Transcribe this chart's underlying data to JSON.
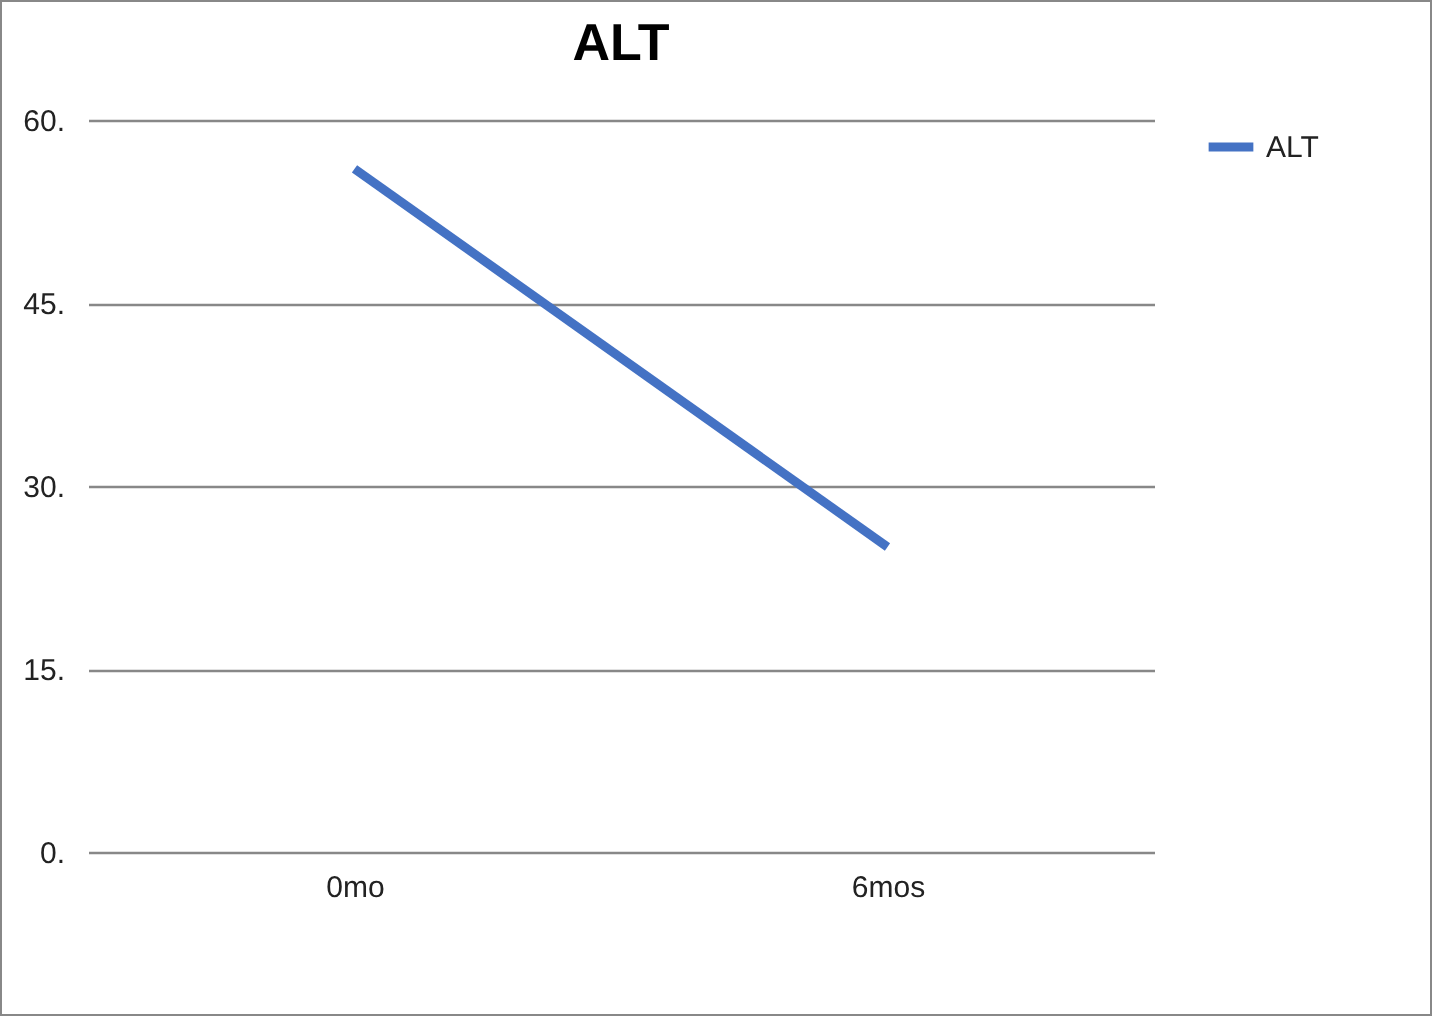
{
  "chart_data": {
    "type": "line",
    "title": "ALT",
    "categories": [
      "0mo",
      "6mos"
    ],
    "series": [
      {
        "name": "ALT",
        "color": "#4472c4",
        "values": [
          56,
          25
        ]
      }
    ],
    "ylim": [
      0,
      60
    ],
    "yticks": [
      {
        "value": 0,
        "label": "0."
      },
      {
        "value": 15,
        "label": "15."
      },
      {
        "value": 30,
        "label": "30."
      },
      {
        "value": 45,
        "label": "45."
      },
      {
        "value": 60,
        "label": "60."
      }
    ],
    "grid": "y",
    "legend": "right",
    "marker": "none",
    "line_style": "solid"
  }
}
